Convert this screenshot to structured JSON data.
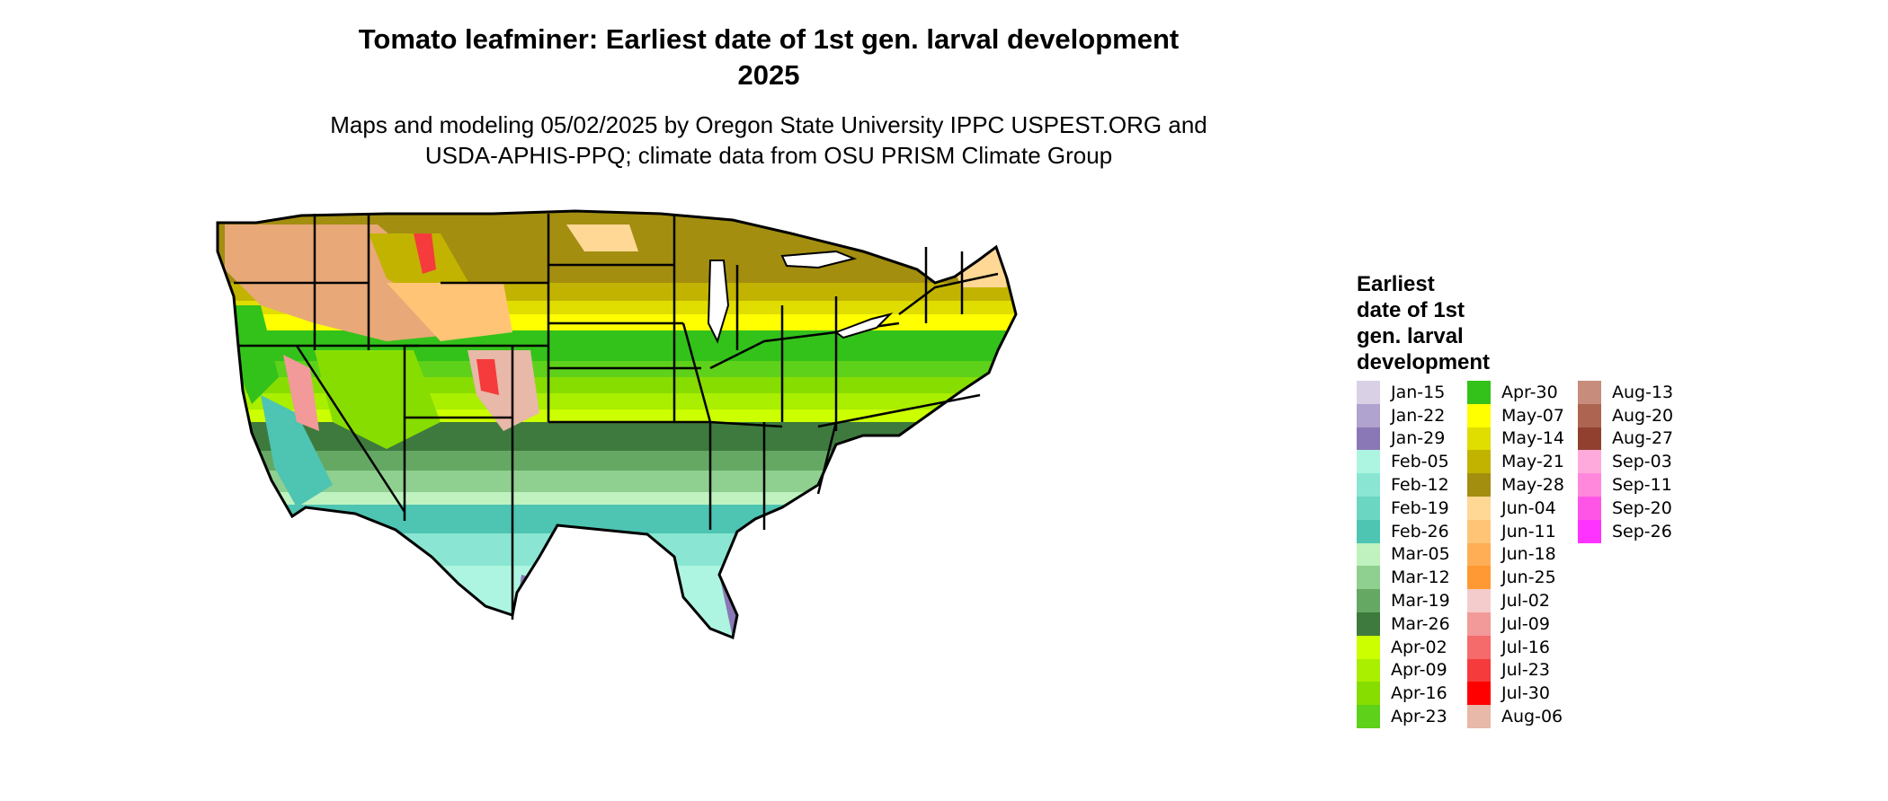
{
  "title": {
    "line1": "Tomato leafminer: Earliest date of 1st gen. larval development",
    "line2": "2025"
  },
  "subtitle": {
    "line1": "Maps and modeling 05/02/2025 by Oregon State University IPPC USPEST.ORG and",
    "line2": "USDA-APHIS-PPQ; climate data from OSU PRISM Climate Group"
  },
  "map": {
    "subject": "contiguous-united-states",
    "boundaries": "state-outlines"
  },
  "legend": {
    "title_lines": [
      "Earliest",
      "date of 1st",
      "gen. larval",
      "development"
    ],
    "columns": [
      [
        {
          "label": "Jan-15",
          "color": "#d9d0e6"
        },
        {
          "label": "Jan-22",
          "color": "#b0a3cf"
        },
        {
          "label": "Jan-29",
          "color": "#8a77b5"
        },
        {
          "label": "Feb-05",
          "color": "#adf5e0"
        },
        {
          "label": "Feb-12",
          "color": "#8ae6d2"
        },
        {
          "label": "Feb-19",
          "color": "#6bd6c2"
        },
        {
          "label": "Feb-26",
          "color": "#4ec4b2"
        },
        {
          "label": "Mar-05",
          "color": "#bff2bf"
        },
        {
          "label": "Mar-12",
          "color": "#8fcf8f"
        },
        {
          "label": "Mar-19",
          "color": "#64a864"
        },
        {
          "label": "Mar-26",
          "color": "#3e7a3e"
        },
        {
          "label": "Apr-02",
          "color": "#ccff00"
        },
        {
          "label": "Apr-09",
          "color": "#aaee00"
        },
        {
          "label": "Apr-16",
          "color": "#88dd00"
        },
        {
          "label": "Apr-23",
          "color": "#5ed11a"
        }
      ],
      [
        {
          "label": "Apr-30",
          "color": "#33c21a"
        },
        {
          "label": "May-07",
          "color": "#ffff00"
        },
        {
          "label": "May-14",
          "color": "#e0dd00"
        },
        {
          "label": "May-21",
          "color": "#c2b300"
        },
        {
          "label": "May-28",
          "color": "#a38e10"
        },
        {
          "label": "Jun-04",
          "color": "#ffd896"
        },
        {
          "label": "Jun-11",
          "color": "#ffc475"
        },
        {
          "label": "Jun-18",
          "color": "#ffae55"
        },
        {
          "label": "Jun-25",
          "color": "#ff9933"
        },
        {
          "label": "Jul-02",
          "color": "#f5cccc"
        },
        {
          "label": "Jul-09",
          "color": "#f29999"
        },
        {
          "label": "Jul-16",
          "color": "#f56a6a"
        },
        {
          "label": "Jul-23",
          "color": "#f53b3b"
        },
        {
          "label": "Jul-30",
          "color": "#ff0000"
        },
        {
          "label": "Aug-06",
          "color": "#e8b8a8"
        }
      ],
      [
        {
          "label": "Aug-13",
          "color": "#c88c7c"
        },
        {
          "label": "Aug-20",
          "color": "#ad6552"
        },
        {
          "label": "Aug-27",
          "color": "#914030"
        },
        {
          "label": "Sep-03",
          "color": "#ffaadd"
        },
        {
          "label": "Sep-11",
          "color": "#ff88dd"
        },
        {
          "label": "Sep-20",
          "color": "#ff55e6"
        },
        {
          "label": "Sep-26",
          "color": "#ff33ff"
        }
      ]
    ]
  }
}
